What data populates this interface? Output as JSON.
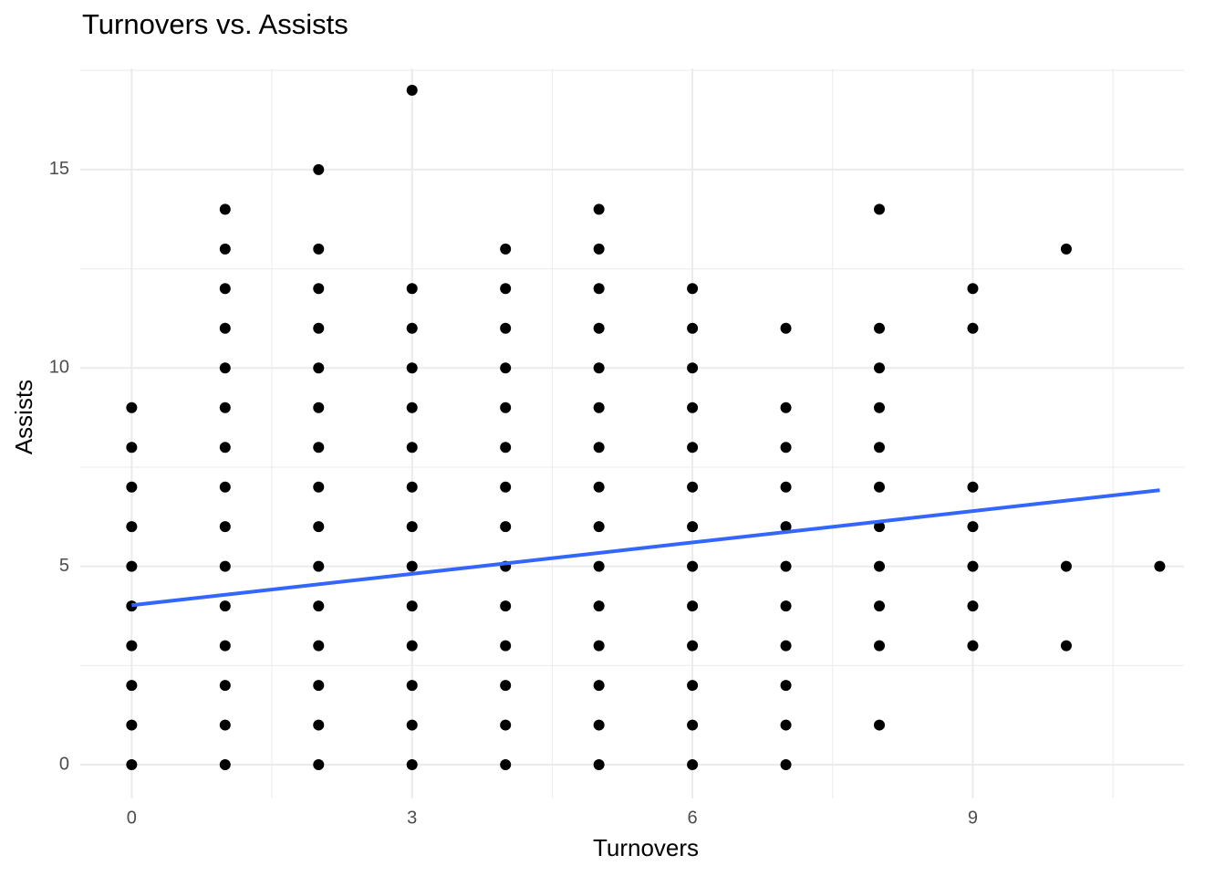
{
  "chart_data": {
    "type": "scatter",
    "title": "Turnovers vs. Assists",
    "x_label": "Turnovers",
    "y_label": "Assists",
    "xlim": [
      -0.55,
      11.26
    ],
    "ylim": [
      -0.85,
      17.55
    ],
    "xticks": [
      0,
      3,
      6,
      9
    ],
    "yticks": [
      0,
      5,
      10,
      15
    ],
    "x_minor_ticks": [
      1.5,
      4.5,
      7.5,
      10.5
    ],
    "y_minor_ticks": [
      2.5,
      7.5,
      12.5,
      17.5
    ],
    "grid": true,
    "color": "#000000",
    "x": [
      0,
      0,
      0,
      0,
      0,
      0,
      0,
      0,
      0,
      0,
      1,
      1,
      1,
      1,
      1,
      1,
      1,
      1,
      1,
      1,
      1,
      1,
      1,
      1,
      1,
      2,
      2,
      2,
      2,
      2,
      2,
      2,
      2,
      2,
      2,
      2,
      2,
      2,
      2,
      2,
      3,
      3,
      3,
      3,
      3,
      3,
      3,
      3,
      3,
      3,
      3,
      3,
      3,
      3,
      4,
      4,
      4,
      4,
      4,
      4,
      4,
      4,
      4,
      4,
      4,
      4,
      4,
      4,
      5,
      5,
      5,
      5,
      5,
      5,
      5,
      5,
      5,
      5,
      5,
      5,
      5,
      5,
      5,
      6,
      6,
      6,
      6,
      6,
      6,
      6,
      6,
      6,
      6,
      6,
      6,
      6,
      7,
      7,
      7,
      7,
      7,
      7,
      7,
      7,
      7,
      7,
      7,
      8,
      8,
      8,
      8,
      8,
      8,
      8,
      8,
      8,
      8,
      8,
      9,
      9,
      9,
      9,
      9,
      9,
      9,
      10,
      10,
      10,
      11
    ],
    "values": [
      0,
      1,
      2,
      3,
      4,
      5,
      6,
      7,
      8,
      9,
      0,
      1,
      2,
      3,
      4,
      5,
      6,
      7,
      8,
      9,
      10,
      11,
      12,
      13,
      14,
      0,
      1,
      2,
      3,
      4,
      5,
      6,
      7,
      8,
      9,
      10,
      11,
      12,
      13,
      15,
      0,
      1,
      2,
      3,
      4,
      5,
      6,
      7,
      8,
      9,
      10,
      11,
      12,
      17,
      0,
      1,
      2,
      3,
      4,
      5,
      6,
      7,
      8,
      9,
      10,
      11,
      12,
      13,
      0,
      1,
      2,
      3,
      4,
      5,
      6,
      7,
      8,
      9,
      10,
      11,
      12,
      13,
      14,
      0,
      1,
      2,
      3,
      4,
      5,
      6,
      7,
      8,
      9,
      10,
      11,
      12,
      0,
      1,
      2,
      3,
      4,
      5,
      6,
      7,
      8,
      9,
      11,
      1,
      3,
      4,
      5,
      6,
      7,
      8,
      9,
      10,
      11,
      14,
      3,
      4,
      5,
      6,
      7,
      11,
      12,
      3,
      5,
      13,
      5
    ],
    "trend_line": {
      "x": [
        0,
        11
      ],
      "values": [
        4.02,
        6.92
      ],
      "color": "#3366ff"
    }
  }
}
